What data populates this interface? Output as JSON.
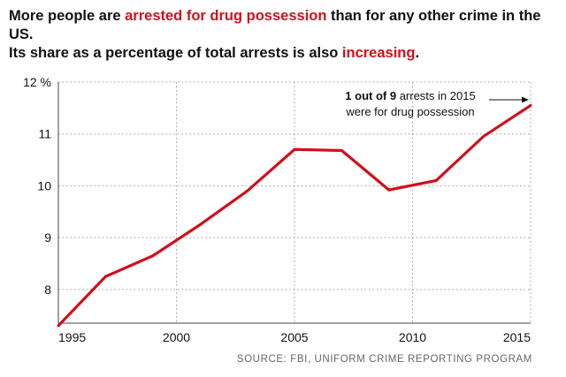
{
  "title": {
    "line1_pre": "More people are ",
    "line1_highlight": "arrested for drug possession",
    "line1_post": " than for any other crime in the US.",
    "line2_pre": "Its share as a percentage of total arrests is also ",
    "line2_highlight": "increasing",
    "line2_post": "."
  },
  "source": "SOURCE: FBI, UNIFORM CRIME REPORTING PROGRAM",
  "colors": {
    "line": "#d0101b",
    "highlight": "#d0101b",
    "grid": "#999999"
  },
  "chart_data": {
    "type": "line",
    "x": [
      1995,
      1997,
      1999,
      2001,
      2003,
      2005,
      2007,
      2009,
      2011,
      2013,
      2015
    ],
    "series": [
      {
        "values": [
          7.3,
          8.25,
          8.65,
          9.25,
          9.9,
          10.7,
          10.68,
          9.92,
          10.1,
          10.95,
          11.55
        ]
      }
    ],
    "xticks": [
      1995,
      2000,
      2005,
      2010,
      2015
    ],
    "yticks": [
      8,
      9,
      10,
      11,
      12
    ],
    "ytick_labels": [
      "8",
      "9",
      "10",
      "11",
      "12 %"
    ],
    "xlim": [
      1995,
      2015
    ],
    "ylim": [
      7.35,
      12
    ],
    "grid": "horizontal and vertical dotted",
    "annotation": {
      "line1_bold": "1 out of 9",
      "line1_rest": " arrests in 2015",
      "line2": "were for drug possession"
    }
  }
}
